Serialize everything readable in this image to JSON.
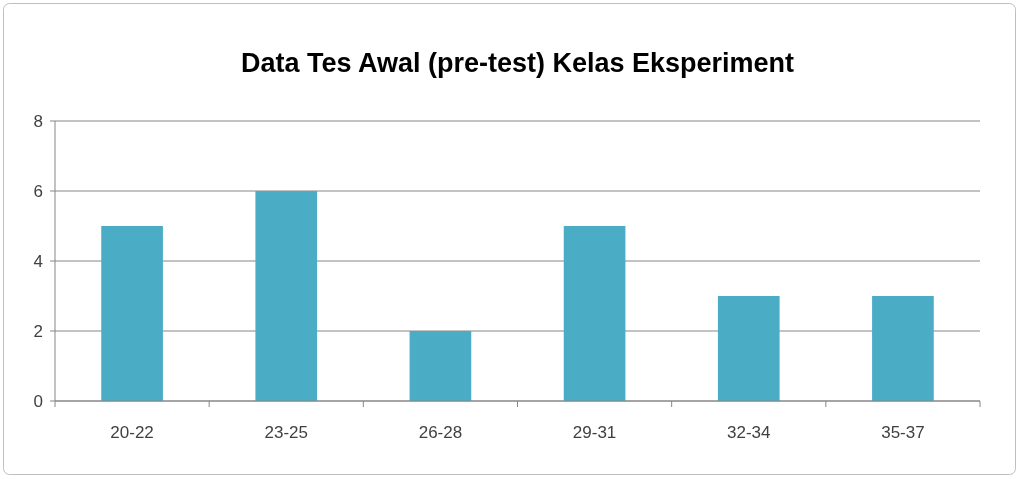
{
  "chart_data": {
    "type": "bar",
    "title": "Data Tes Awal (pre-test) Kelas Eksperiment",
    "categories": [
      "20-22",
      "23-25",
      "26-28",
      "29-31",
      "32-34",
      "35-37"
    ],
    "values": [
      5,
      6,
      2,
      5,
      3,
      3
    ],
    "color": "#4bacc6",
    "ylim": [
      0,
      8
    ],
    "yticks": [
      0,
      2,
      4,
      6,
      8
    ],
    "grid": "y"
  }
}
